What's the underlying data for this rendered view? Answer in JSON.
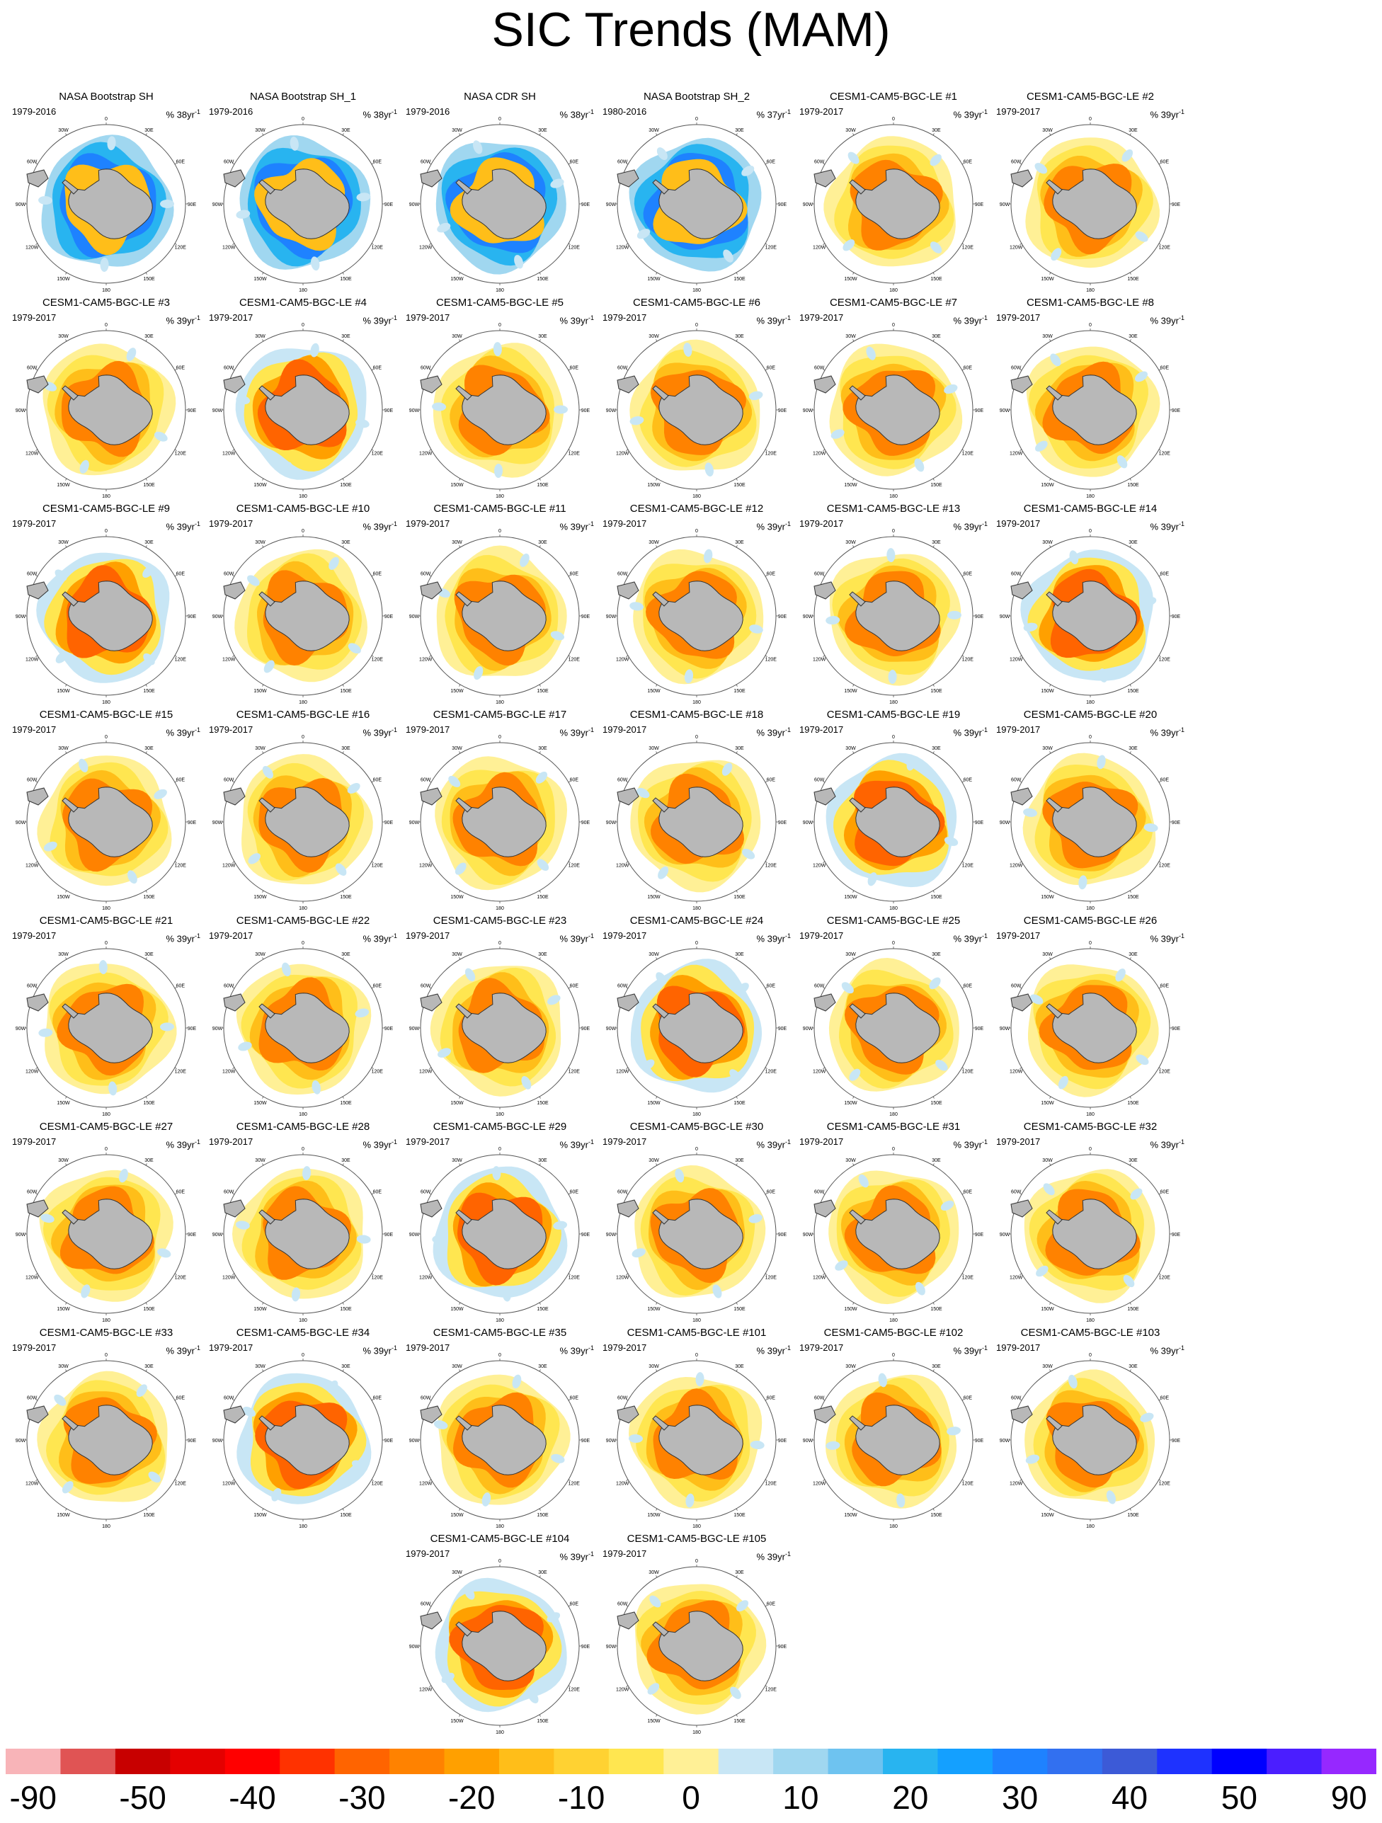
{
  "title": "SIC Trends (MAM)",
  "colors": {
    "land": "#b8b8b8",
    "palette": [
      "#f8b4b8",
      "#e05454",
      "#c80000",
      "#e40000",
      "#ff0000",
      "#ff3200",
      "#ff6400",
      "#ff8200",
      "#ffa000",
      "#ffbe19",
      "#ffd232",
      "#ffe650",
      "#fff096",
      "#c8e6f5",
      "#a0d7f0",
      "#6ec3f0",
      "#28b4f0",
      "#14a0ff",
      "#1e82ff",
      "#3270f0",
      "#3c5ad7",
      "#1e32ff",
      "#0000ff",
      "#4b1eff",
      "#9628ff"
    ]
  },
  "colorbar": {
    "labels": [
      {
        "text": "-90",
        "index": 0
      },
      {
        "text": "-50",
        "index": 2
      },
      {
        "text": "-40",
        "index": 4
      },
      {
        "text": "-30",
        "index": 6
      },
      {
        "text": "-20",
        "index": 8
      },
      {
        "text": "-10",
        "index": 10
      },
      {
        "text": "0",
        "index": 12
      },
      {
        "text": "10",
        "index": 14
      },
      {
        "text": "20",
        "index": 16
      },
      {
        "text": "30",
        "index": 18
      },
      {
        "text": "40",
        "index": 20
      },
      {
        "text": "50",
        "index": 22
      },
      {
        "text": "90",
        "index": 24
      }
    ]
  },
  "map_labels": {
    "lon": [
      "0",
      "30E",
      "60E",
      "90E",
      "120E",
      "150E",
      "180",
      "150W",
      "120W",
      "90W",
      "60W",
      "30W"
    ]
  },
  "panels": [
    {
      "title": "NASA Bootstrap SH",
      "years": "1979-2016",
      "units": "% 38yr",
      "type": "obs"
    },
    {
      "title": "NASA Bootstrap SH_1",
      "years": "1979-2016",
      "units": "% 38yr",
      "type": "obs"
    },
    {
      "title": "NASA CDR SH",
      "years": "1979-2016",
      "units": "% 38yr",
      "type": "obs"
    },
    {
      "title": "NASA Bootstrap SH_2",
      "years": "1980-2016",
      "units": "% 37yr",
      "type": "obs"
    },
    {
      "title": "CESM1-CAM5-BGC-LE #1",
      "years": "1979-2017",
      "units": "% 39yr",
      "type": "model"
    },
    {
      "title": "CESM1-CAM5-BGC-LE #2",
      "years": "1979-2017",
      "units": "% 39yr",
      "type": "model"
    },
    {
      "title": "CESM1-CAM5-BGC-LE #3",
      "years": "1979-2017",
      "units": "% 39yr",
      "type": "model"
    },
    {
      "title": "CESM1-CAM5-BGC-LE #4",
      "years": "1979-2017",
      "units": "% 39yr",
      "type": "model"
    },
    {
      "title": "CESM1-CAM5-BGC-LE #5",
      "years": "1979-2017",
      "units": "% 39yr",
      "type": "model"
    },
    {
      "title": "CESM1-CAM5-BGC-LE #6",
      "years": "1979-2017",
      "units": "% 39yr",
      "type": "model"
    },
    {
      "title": "CESM1-CAM5-BGC-LE #7",
      "years": "1979-2017",
      "units": "% 39yr",
      "type": "model"
    },
    {
      "title": "CESM1-CAM5-BGC-LE #8",
      "years": "1979-2017",
      "units": "% 39yr",
      "type": "model"
    },
    {
      "title": "CESM1-CAM5-BGC-LE #9",
      "years": "1979-2017",
      "units": "% 39yr",
      "type": "model"
    },
    {
      "title": "CESM1-CAM5-BGC-LE #10",
      "years": "1979-2017",
      "units": "% 39yr",
      "type": "model"
    },
    {
      "title": "CESM1-CAM5-BGC-LE #11",
      "years": "1979-2017",
      "units": "% 39yr",
      "type": "model"
    },
    {
      "title": "CESM1-CAM5-BGC-LE #12",
      "years": "1979-2017",
      "units": "% 39yr",
      "type": "model"
    },
    {
      "title": "CESM1-CAM5-BGC-LE #13",
      "years": "1979-2017",
      "units": "% 39yr",
      "type": "model"
    },
    {
      "title": "CESM1-CAM5-BGC-LE #14",
      "years": "1979-2017",
      "units": "% 39yr",
      "type": "model"
    },
    {
      "title": "CESM1-CAM5-BGC-LE #15",
      "years": "1979-2017",
      "units": "% 39yr",
      "type": "model"
    },
    {
      "title": "CESM1-CAM5-BGC-LE #16",
      "years": "1979-2017",
      "units": "% 39yr",
      "type": "model"
    },
    {
      "title": "CESM1-CAM5-BGC-LE #17",
      "years": "1979-2017",
      "units": "% 39yr",
      "type": "model"
    },
    {
      "title": "CESM1-CAM5-BGC-LE #18",
      "years": "1979-2017",
      "units": "% 39yr",
      "type": "model"
    },
    {
      "title": "CESM1-CAM5-BGC-LE #19",
      "years": "1979-2017",
      "units": "% 39yr",
      "type": "model"
    },
    {
      "title": "CESM1-CAM5-BGC-LE #20",
      "years": "1979-2017",
      "units": "% 39yr",
      "type": "model"
    },
    {
      "title": "CESM1-CAM5-BGC-LE #21",
      "years": "1979-2017",
      "units": "% 39yr",
      "type": "model"
    },
    {
      "title": "CESM1-CAM5-BGC-LE #22",
      "years": "1979-2017",
      "units": "% 39yr",
      "type": "model"
    },
    {
      "title": "CESM1-CAM5-BGC-LE #23",
      "years": "1979-2017",
      "units": "% 39yr",
      "type": "model"
    },
    {
      "title": "CESM1-CAM5-BGC-LE #24",
      "years": "1979-2017",
      "units": "% 39yr",
      "type": "model"
    },
    {
      "title": "CESM1-CAM5-BGC-LE #25",
      "years": "1979-2017",
      "units": "% 39yr",
      "type": "model"
    },
    {
      "title": "CESM1-CAM5-BGC-LE #26",
      "years": "1979-2017",
      "units": "% 39yr",
      "type": "model"
    },
    {
      "title": "CESM1-CAM5-BGC-LE #27",
      "years": "1979-2017",
      "units": "% 39yr",
      "type": "model"
    },
    {
      "title": "CESM1-CAM5-BGC-LE #28",
      "years": "1979-2017",
      "units": "% 39yr",
      "type": "model"
    },
    {
      "title": "CESM1-CAM5-BGC-LE #29",
      "years": "1979-2017",
      "units": "% 39yr",
      "type": "model"
    },
    {
      "title": "CESM1-CAM5-BGC-LE #30",
      "years": "1979-2017",
      "units": "% 39yr",
      "type": "model"
    },
    {
      "title": "CESM1-CAM5-BGC-LE #31",
      "years": "1979-2017",
      "units": "% 39yr",
      "type": "model"
    },
    {
      "title": "CESM1-CAM5-BGC-LE #32",
      "years": "1979-2017",
      "units": "% 39yr",
      "type": "model"
    },
    {
      "title": "CESM1-CAM5-BGC-LE #33",
      "years": "1979-2017",
      "units": "% 39yr",
      "type": "model"
    },
    {
      "title": "CESM1-CAM5-BGC-LE #34",
      "years": "1979-2017",
      "units": "% 39yr",
      "type": "model"
    },
    {
      "title": "CESM1-CAM5-BGC-LE #35",
      "years": "1979-2017",
      "units": "% 39yr",
      "type": "model"
    },
    {
      "title": "CESM1-CAM5-BGC-LE #101",
      "years": "1979-2017",
      "units": "% 39yr",
      "type": "model"
    },
    {
      "title": "CESM1-CAM5-BGC-LE #102",
      "years": "1979-2017",
      "units": "% 39yr",
      "type": "model"
    },
    {
      "title": "CESM1-CAM5-BGC-LE #103",
      "years": "1979-2017",
      "units": "% 39yr",
      "type": "model"
    },
    {
      "title": "CESM1-CAM5-BGC-LE #104",
      "years": "1979-2017",
      "units": "% 39yr",
      "type": "model"
    },
    {
      "title": "CESM1-CAM5-BGC-LE #105",
      "years": "1979-2017",
      "units": "% 39yr",
      "type": "model"
    }
  ]
}
